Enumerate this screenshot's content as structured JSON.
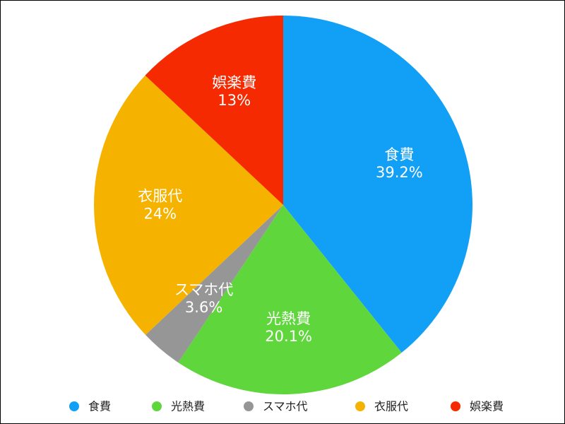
{
  "chart_data": {
    "type": "pie",
    "categories": [
      "食費",
      "光熱費",
      "スマホ代",
      "衣服代",
      "娯楽費"
    ],
    "values": [
      39.2,
      20.1,
      3.6,
      24,
      13
    ],
    "value_labels": [
      "39.2%",
      "20.1%",
      "3.6%",
      "24%",
      "13%"
    ],
    "colors": [
      "#12a0f7",
      "#5fd63c",
      "#969696",
      "#f5b300",
      "#f52a00"
    ],
    "legend": "bottom"
  }
}
